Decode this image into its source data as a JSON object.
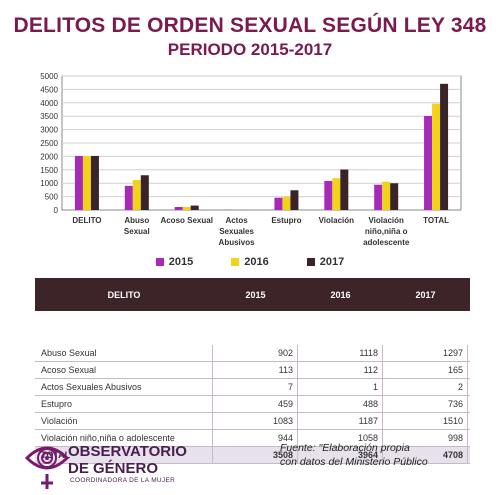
{
  "title": "DELITOS DE ORDEN SEXUAL SEGÚN LEY 348",
  "subtitle": "PERIODO 2015-2017",
  "colors": {
    "brand": "#7a1a4f",
    "series_2015": "#a52ab8",
    "series_2016": "#f3d21a",
    "series_2017": "#3a2428",
    "table_header": "#3d2429",
    "total_row": "#e7e1ec"
  },
  "chart_data": {
    "type": "bar",
    "categories": [
      "DELITO",
      "Abuso Sexual",
      "Acoso Sexual",
      "Actos Sexuales Abusivos",
      "Estupro",
      "Violación",
      "Violación niño,niña o adolescente",
      "TOTAL"
    ],
    "category_lines": [
      [
        "DELITO"
      ],
      [
        "Abuso",
        "Sexual"
      ],
      [
        "Acoso Sexual"
      ],
      [
        "Actos",
        "Sexuales",
        "Abusivos"
      ],
      [
        "Estupro"
      ],
      [
        "Violación"
      ],
      [
        "Violación",
        "niño,niña o",
        "adolescente"
      ],
      [
        "TOTAL"
      ]
    ],
    "series": [
      {
        "name": "2015",
        "values": [
          2015,
          902,
          113,
          7,
          459,
          1083,
          944,
          3508
        ]
      },
      {
        "name": "2016",
        "values": [
          2016,
          1118,
          112,
          1,
          488,
          1187,
          1058,
          3964
        ]
      },
      {
        "name": "2017",
        "values": [
          2017,
          1297,
          165,
          2,
          736,
          1510,
          998,
          4708
        ]
      }
    ],
    "ylim": [
      0,
      5000
    ],
    "yticks": [
      0,
      500,
      1000,
      1500,
      2000,
      2500,
      3000,
      3500,
      4000,
      4500,
      5000
    ],
    "grid": true,
    "legend_position": "bottom"
  },
  "table": {
    "headers": [
      "DELITO",
      "2015",
      "2016",
      "2017"
    ],
    "rows": [
      [
        "Abuso Sexual",
        "902",
        "1118",
        "1297"
      ],
      [
        "Acoso Sexual",
        "113",
        "112",
        "165"
      ],
      [
        "Actos Sexuales Abusivos",
        "7",
        "1",
        "2"
      ],
      [
        "Estupro",
        "459",
        "488",
        "736"
      ],
      [
        "Violación",
        "1083",
        "1187",
        "1510"
      ],
      [
        "Violación niño,niña o adolescente",
        "944",
        "1058",
        "998"
      ]
    ],
    "total": [
      "TOTAL",
      "3508",
      "3964",
      "4708"
    ]
  },
  "logo": {
    "line1": "OBSERVATORIO",
    "line2": "DE GÉNERO",
    "line3": "COORDINADORA DE LA MUJER"
  },
  "source": {
    "line1": "Fuente: \"Elaboración propia",
    "line2": "con datos del Ministerio  Público"
  }
}
